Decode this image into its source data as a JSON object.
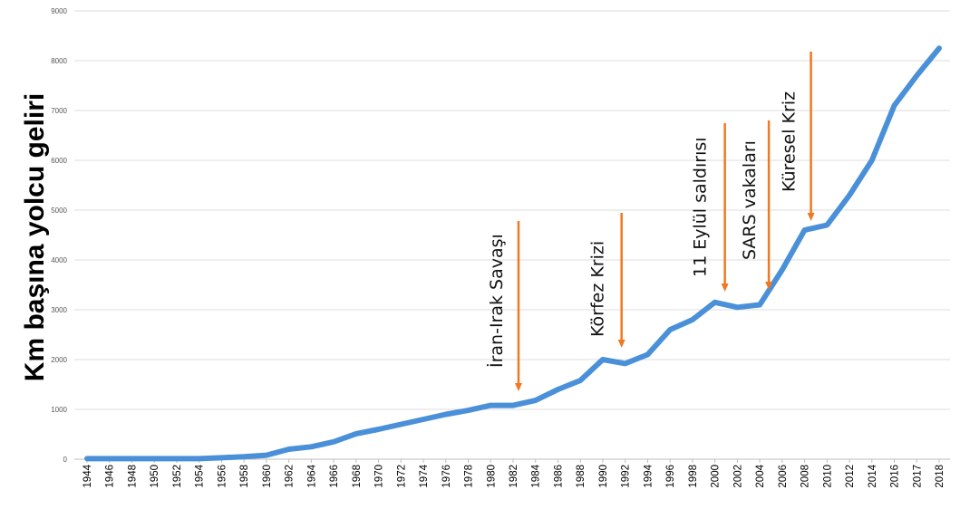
{
  "chart_data": {
    "type": "line",
    "title": "",
    "xlabel": "",
    "ylabel": "Km başına yolcu geliri",
    "ylim": [
      0,
      9000
    ],
    "yticks": [
      0,
      1000,
      2000,
      3000,
      4000,
      5000,
      6000,
      7000,
      8000,
      9000
    ],
    "grid": true,
    "categories": [
      "1944",
      "1946",
      "1948",
      "1950",
      "1952",
      "1954",
      "1956",
      "1958",
      "1960",
      "1962",
      "1964",
      "1966",
      "1968",
      "1970",
      "1972",
      "1974",
      "1976",
      "1978",
      "1980",
      "1982",
      "1984",
      "1986",
      "1988",
      "1990",
      "1992",
      "1994",
      "1996",
      "1998",
      "2000",
      "2002",
      "2004",
      "2006",
      "2008",
      "2010",
      "2012",
      "2014",
      "2016",
      "2017",
      "2018"
    ],
    "series": [
      {
        "values": [
          10,
          10,
          10,
          10,
          10,
          10,
          30,
          50,
          80,
          200,
          250,
          350,
          510,
          600,
          700,
          800,
          900,
          980,
          1080,
          1080,
          1180,
          1400,
          1580,
          2000,
          1920,
          2100,
          2600,
          2800,
          3150,
          3050,
          3100,
          3800,
          4600,
          4700,
          5300,
          6000,
          7100,
          7700,
          8250
        ],
        "color": "#4a90d9"
      }
    ],
    "annotations": [
      {
        "text": "İran-Irak Savaşı",
        "x": "1982",
        "color": "#f07820"
      },
      {
        "text": "Körfez Krizi",
        "x": "1992",
        "color": "#f07820"
      },
      {
        "text": "11 Eylül saldırısı",
        "x": "2000",
        "color": "#f07820"
      },
      {
        "text": "SARS vakaları",
        "x": "2004",
        "color": "#f07820"
      },
      {
        "text": "Küresel Kriz",
        "x": "2008",
        "color": "#f07820"
      }
    ]
  }
}
